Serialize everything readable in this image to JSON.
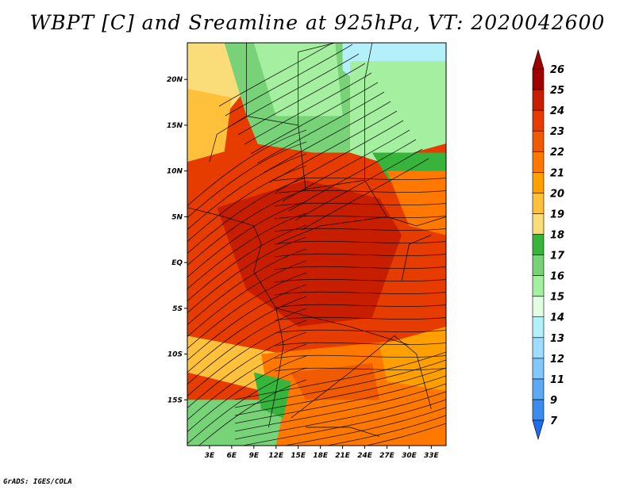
{
  "title": "WBPT [C] and Sreamline at 925hPa, VT: 2020042600",
  "credit": "GrADS: IGES/COLA",
  "map": {
    "lon_range": [
      0,
      35
    ],
    "lat_range": [
      -20,
      24
    ],
    "lon_ticks": [
      {
        "value": 3,
        "label": "3E"
      },
      {
        "value": 6,
        "label": "6E"
      },
      {
        "value": 9,
        "label": "9E"
      },
      {
        "value": 12,
        "label": "12E"
      },
      {
        "value": 15,
        "label": "15E"
      },
      {
        "value": 18,
        "label": "18E"
      },
      {
        "value": 21,
        "label": "21E"
      },
      {
        "value": 24,
        "label": "24E"
      },
      {
        "value": 27,
        "label": "27E"
      },
      {
        "value": 30,
        "label": "30E"
      },
      {
        "value": 33,
        "label": "33E"
      }
    ],
    "lat_ticks": [
      {
        "value": 20,
        "label": "20N"
      },
      {
        "value": 15,
        "label": "15N"
      },
      {
        "value": 10,
        "label": "10N"
      },
      {
        "value": 5,
        "label": "5N"
      },
      {
        "value": 0,
        "label": "EQ"
      },
      {
        "value": -5,
        "label": "5S"
      },
      {
        "value": -10,
        "label": "10S"
      },
      {
        "value": -15,
        "label": "15S"
      }
    ],
    "field_regions": [
      {
        "level": 19,
        "lons": [
          0,
          7,
          8,
          5,
          0
        ],
        "lats": [
          24,
          24,
          19,
          16,
          18
        ]
      },
      {
        "level": 17,
        "lons": [
          5,
          22,
          22,
          10,
          8
        ],
        "lats": [
          24,
          24,
          12,
          12,
          16
        ]
      },
      {
        "level": 16,
        "lons": [
          9,
          20,
          21,
          12
        ],
        "lats": [
          24,
          24,
          16,
          16
        ]
      },
      {
        "level": 14,
        "lons": [
          21,
          35,
          35,
          27,
          21
        ],
        "lats": [
          24,
          24,
          20,
          17,
          21
        ]
      },
      {
        "level": 16,
        "lons": [
          22,
          35,
          35,
          26,
          22
        ],
        "lats": [
          22,
          22,
          13,
          11,
          12
        ]
      },
      {
        "level": 18,
        "lons": [
          25,
          35,
          35,
          28
        ],
        "lats": [
          12,
          12,
          8,
          8
        ]
      },
      {
        "level": 20,
        "lons": [
          0,
          6,
          5,
          0
        ],
        "lats": [
          19,
          18,
          12,
          11
        ]
      },
      {
        "level": 24,
        "lons": [
          0,
          9,
          17,
          25,
          27,
          31,
          35,
          35,
          30,
          22,
          13,
          9,
          0
        ],
        "lats": [
          11,
          13,
          12,
          10,
          9,
          8,
          5,
          -7,
          -9,
          -11,
          -11,
          -10,
          -8
        ]
      },
      {
        "level": 25,
        "lons": [
          4,
          16,
          26,
          29,
          25,
          15,
          8
        ],
        "lats": [
          6,
          9,
          7,
          3,
          -6,
          -7,
          -3
        ]
      },
      {
        "level": 22,
        "lons": [
          27,
          35,
          35,
          30
        ],
        "lats": [
          10,
          10,
          3,
          4
        ]
      },
      {
        "level": 20,
        "lons": [
          0,
          13,
          10,
          0
        ],
        "lats": [
          -8,
          -10,
          -14,
          -12
        ]
      },
      {
        "level": 22,
        "lons": [
          10,
          35,
          35,
          12
        ],
        "lats": [
          -10,
          -8,
          -20,
          -20
        ]
      },
      {
        "level": 23,
        "lons": [
          14,
          25,
          26,
          16
        ],
        "lats": [
          -12,
          -11,
          -15,
          -15
        ]
      },
      {
        "level": 21,
        "lons": [
          26,
          35,
          35,
          27
        ],
        "lats": [
          -9,
          -7,
          -14,
          -13
        ]
      },
      {
        "level": 17,
        "lons": [
          0,
          11,
          13,
          12,
          0
        ],
        "lats": [
          -15,
          -15,
          -16,
          -20,
          -20
        ]
      },
      {
        "level": 18,
        "lons": [
          9,
          14,
          13,
          10
        ],
        "lats": [
          -12,
          -13,
          -17,
          -16
        ]
      }
    ]
  },
  "colorbar": {
    "levels": [
      "7",
      "9",
      "11",
      "12",
      "13",
      "14",
      "15",
      "16",
      "17",
      "18",
      "19",
      "20",
      "21",
      "22",
      "23",
      "24",
      "25",
      "26"
    ],
    "colors": [
      "#1e6eeb",
      "#3c8cf0",
      "#5aaaf5",
      "#82c8fa",
      "#a0dcff",
      "#b4f0fa",
      "#e1ffe1",
      "#a5f0a0",
      "#78d278",
      "#37b43c",
      "#fadc78",
      "#ffc03c",
      "#ffa000",
      "#ff7800",
      "#f05a00",
      "#e63c00",
      "#c81e00",
      "#a00000"
    ]
  }
}
